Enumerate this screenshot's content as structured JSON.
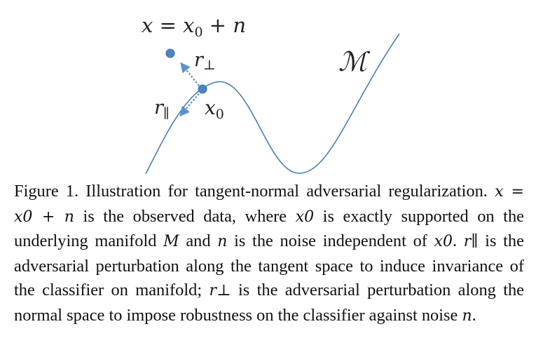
{
  "figure": {
    "equation": "x = x0 + n",
    "manifold_label": "M",
    "labels": {
      "x0": "x0",
      "r_perp": "r⊥",
      "r_par": "r∥"
    },
    "colors": {
      "curve": "#4a7fb8",
      "point": "#4a86c6",
      "arrow": "#5a92cc"
    }
  },
  "caption": {
    "label": "Figure 1.",
    "title": "Illustration for tangent-normal adversarial regularization.",
    "eq": "x = x0 + n",
    "s1": "is the observed data, where",
    "x0": "x0",
    "s2": "is exactly supported on the underlying manifold",
    "M": "M",
    "s3": "and",
    "n": "n",
    "s4": "is the noise independent of",
    "x0b": "x0",
    "s5": ".",
    "rpar": "r∥",
    "s6": "is the adversarial perturbation along the tangent space to induce invariance of the classifier on manifold;",
    "rperp": "r⊥",
    "s7": "is the adversarial perturbation along the normal space to impose robustness on the classifier against noise",
    "n2": "n",
    "s8": "."
  }
}
